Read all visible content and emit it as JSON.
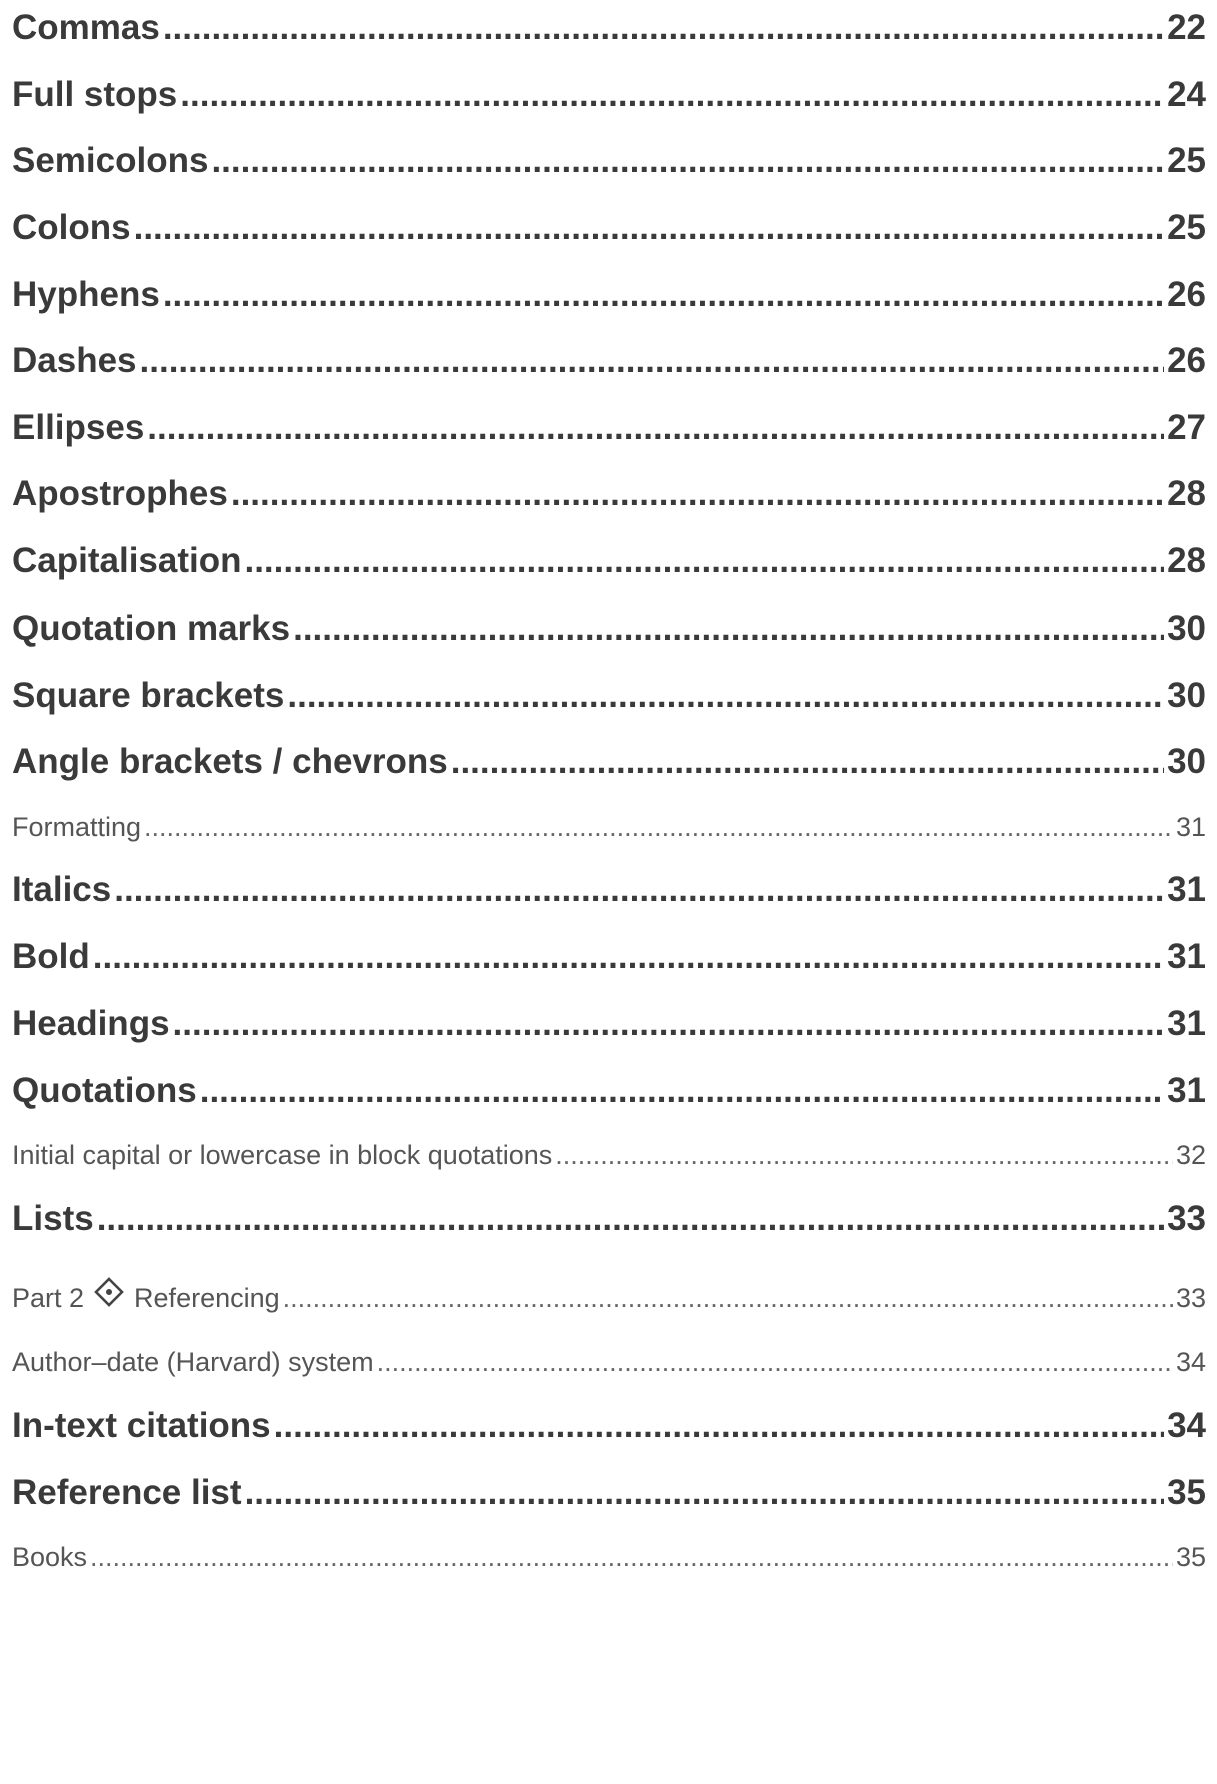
{
  "toc": {
    "entries": [
      {
        "title": "Commas",
        "page": "22",
        "level": "major"
      },
      {
        "title": "Full stops",
        "page": "24",
        "level": "major"
      },
      {
        "title": "Semicolons",
        "page": "25",
        "level": "major"
      },
      {
        "title": "Colons",
        "page": "25",
        "level": "major"
      },
      {
        "title": "Hyphens",
        "page": "26",
        "level": "major"
      },
      {
        "title": "Dashes",
        "page": "26",
        "level": "major"
      },
      {
        "title": "Ellipses",
        "page": "27",
        "level": "major"
      },
      {
        "title": "Apostrophes",
        "page": "28",
        "level": "major"
      },
      {
        "title": "Capitalisation",
        "page": "28",
        "level": "major"
      },
      {
        "title": "Quotation marks",
        "page": "30",
        "level": "major"
      },
      {
        "title": "Square brackets",
        "page": "30",
        "level": "major"
      },
      {
        "title": "Angle brackets / chevrons",
        "page": "30",
        "level": "major"
      },
      {
        "title": "Formatting",
        "page": "31",
        "level": "minor"
      },
      {
        "title": "Italics",
        "page": "31",
        "level": "major"
      },
      {
        "title": "Bold",
        "page": "31",
        "level": "major"
      },
      {
        "title": "Headings",
        "page": "31",
        "level": "major"
      },
      {
        "title": "Quotations",
        "page": "31",
        "level": "major"
      },
      {
        "title": "Initial capital or lowercase in block quotations",
        "page": "32",
        "level": "minor"
      },
      {
        "title": "Lists",
        "page": "33",
        "level": "major"
      },
      {
        "title": "Part 2",
        "title_after_icon": "Referencing",
        "icon": "diamond-dot-icon",
        "page": "33",
        "level": "minor"
      },
      {
        "title": "Author–date (Harvard) system",
        "page": "34",
        "level": "minor"
      },
      {
        "title": "In-text citations",
        "page": "34",
        "level": "major"
      },
      {
        "title": "Reference list",
        "page": "35",
        "level": "major"
      },
      {
        "title": "Books",
        "page": "35",
        "level": "minor"
      }
    ]
  }
}
